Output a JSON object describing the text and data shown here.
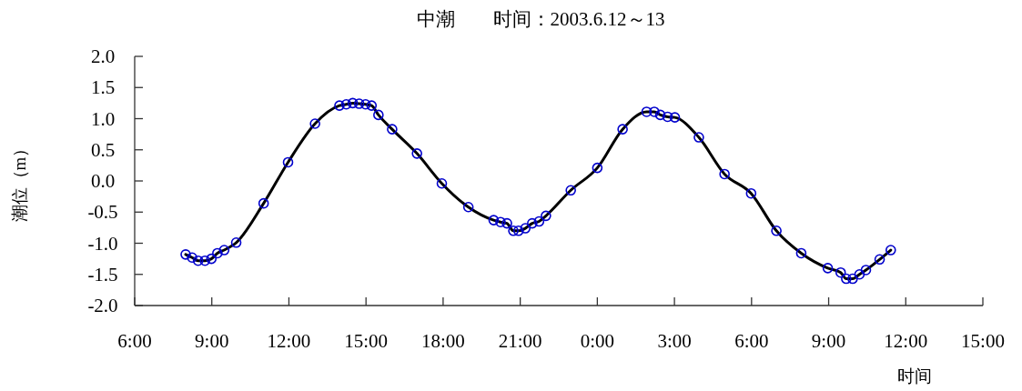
{
  "chart_data": {
    "type": "line",
    "title": "中潮　　时间：2003.6.12～13",
    "xlabel": "时间",
    "ylabel": "潮位（m）",
    "x": [
      "2003-06-12T07:59",
      "2003-06-12T08:14",
      "2003-06-12T08:28",
      "2003-06-12T08:44",
      "2003-06-12T08:59",
      "2003-06-12T09:13",
      "2003-06-12T09:29",
      "2003-06-12T09:57",
      "2003-06-12T11:01",
      "2003-06-12T11:58",
      "2003-06-12T13:01",
      "2003-06-12T13:58",
      "2003-06-12T14:14",
      "2003-06-12T14:29",
      "2003-06-12T14:44",
      "2003-06-12T14:59",
      "2003-06-12T15:13",
      "2003-06-12T15:29",
      "2003-06-12T16:01",
      "2003-06-12T16:59",
      "2003-06-12T17:57",
      "2003-06-12T18:59",
      "2003-06-12T19:58",
      "2003-06-12T20:14",
      "2003-06-12T20:29",
      "2003-06-12T20:44",
      "2003-06-12T20:56",
      "2003-06-12T21:12",
      "2003-06-12T21:28",
      "2003-06-12T21:44",
      "2003-06-12T22:00",
      "2003-06-12T22:58",
      "2003-06-13T00:00",
      "2003-06-13T00:59",
      "2003-06-13T01:55",
      "2003-06-13T02:13",
      "2003-06-13T02:27",
      "2003-06-13T02:44",
      "2003-06-13T03:01",
      "2003-06-13T03:57",
      "2003-06-13T04:57",
      "2003-06-13T05:59",
      "2003-06-13T06:58",
      "2003-06-13T07:56",
      "2003-06-13T08:58",
      "2003-06-13T09:28",
      "2003-06-13T09:41",
      "2003-06-13T09:56",
      "2003-06-13T10:12",
      "2003-06-13T10:27",
      "2003-06-13T10:59",
      "2003-06-13T11:25"
    ],
    "series": [
      {
        "type": "line",
        "color": "#000000",
        "marker": "none",
        "line_style": "solid",
        "values": [
          -1.18,
          -1.23,
          -1.28,
          -1.28,
          -1.25,
          -1.16,
          -1.11,
          -0.99,
          -0.36,
          0.3,
          0.92,
          1.21,
          1.23,
          1.25,
          1.24,
          1.23,
          1.21,
          1.06,
          0.83,
          0.44,
          -0.04,
          -0.42,
          -0.63,
          -0.66,
          -0.68,
          -0.8,
          -0.8,
          -0.76,
          -0.68,
          -0.65,
          -0.56,
          -0.15,
          0.21,
          0.83,
          1.11,
          1.11,
          1.06,
          1.03,
          1.02,
          0.7,
          0.11,
          -0.2,
          -0.8,
          -1.16,
          -1.4,
          -1.47,
          -1.57,
          -1.57,
          -1.5,
          -1.43,
          -1.26,
          -1.11
        ]
      },
      {
        "type": "scatter",
        "color": "#0000cc",
        "marker": "circle",
        "values": [
          -1.18,
          -1.23,
          -1.28,
          -1.28,
          -1.25,
          -1.16,
          -1.11,
          -0.99,
          -0.36,
          0.3,
          0.92,
          1.21,
          1.23,
          1.25,
          1.24,
          1.23,
          1.21,
          1.06,
          0.83,
          0.44,
          -0.04,
          -0.42,
          -0.63,
          -0.66,
          -0.68,
          -0.8,
          -0.8,
          -0.76,
          -0.68,
          -0.65,
          -0.56,
          -0.15,
          0.21,
          0.83,
          1.11,
          1.11,
          1.06,
          1.03,
          1.02,
          0.7,
          0.11,
          -0.2,
          -0.8,
          -1.16,
          -1.4,
          -1.47,
          -1.57,
          -1.57,
          -1.5,
          -1.43,
          -1.26,
          -1.11
        ]
      }
    ],
    "xlim": [
      "2003-06-12T06:00",
      "2003-06-13T15:00"
    ],
    "xticks": [
      {
        "value": "2003-06-12T06:00",
        "label": "6:00"
      },
      {
        "value": "2003-06-12T09:00",
        "label": "9:00"
      },
      {
        "value": "2003-06-12T12:00",
        "label": "12:00"
      },
      {
        "value": "2003-06-12T15:00",
        "label": "15:00"
      },
      {
        "value": "2003-06-12T18:00",
        "label": "18:00"
      },
      {
        "value": "2003-06-12T21:00",
        "label": "21:00"
      },
      {
        "value": "2003-06-13T00:00",
        "label": "0:00"
      },
      {
        "value": "2003-06-13T03:00",
        "label": "3:00"
      },
      {
        "value": "2003-06-13T06:00",
        "label": "6:00"
      },
      {
        "value": "2003-06-13T09:00",
        "label": "9:00"
      },
      {
        "value": "2003-06-13T12:00",
        "label": "12:00"
      },
      {
        "value": "2003-06-13T15:00",
        "label": "15:00"
      }
    ],
    "ylim": [
      -2,
      2
    ],
    "yticks": [
      {
        "value": 2,
        "label": "2.0"
      },
      {
        "value": 1.5,
        "label": "1.5"
      },
      {
        "value": 1,
        "label": "1.0"
      },
      {
        "value": 0.5,
        "label": "0.5"
      },
      {
        "value": 0,
        "label": "0.0"
      },
      {
        "value": -0.5,
        "label": "-0.5"
      },
      {
        "value": -1,
        "label": "-1.0"
      },
      {
        "value": -1.5,
        "label": "-1.5"
      },
      {
        "value": -2,
        "label": "-2.0"
      }
    ],
    "grid": false
  }
}
